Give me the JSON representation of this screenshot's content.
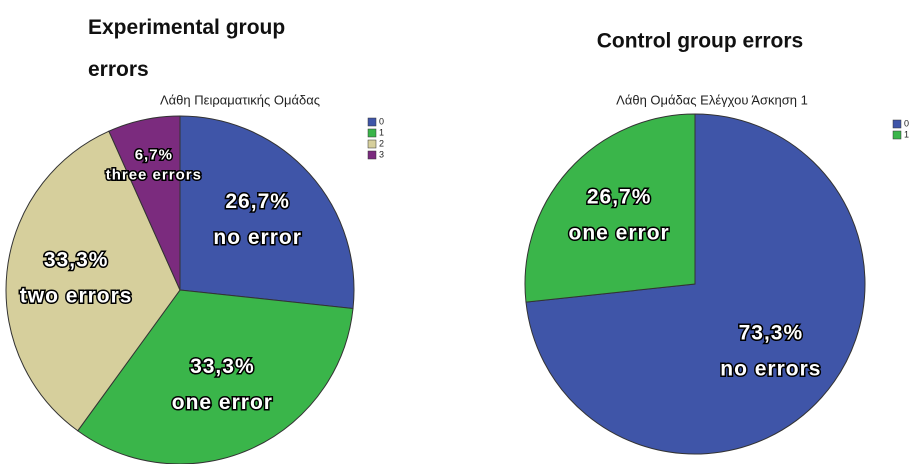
{
  "chart_data": [
    {
      "type": "pie",
      "title": "Experimental group errors",
      "subtitle": "Λάθη Πειραματικής Ομάδας",
      "categories": [
        "0",
        "1",
        "2",
        "3"
      ],
      "values": [
        26.7,
        33.3,
        33.3,
        6.7
      ],
      "value_labels": [
        "26,7%",
        "33,3%",
        "33,3%",
        "6,7%"
      ],
      "slice_labels": [
        "no error",
        "one error",
        "two errors",
        "three errors"
      ],
      "colors": [
        "#3f55a8",
        "#3ab54a",
        "#d6cf9c",
        "#7b2b7e"
      ]
    },
    {
      "type": "pie",
      "title": "Control group errors",
      "subtitle": "Λάθη Ομάδας Ελέγχου Άσκηση 1",
      "categories": [
        "0",
        "1"
      ],
      "values": [
        73.3,
        26.7
      ],
      "value_labels": [
        "73,3%",
        "26,7%"
      ],
      "slice_labels": [
        "no errors",
        "one error"
      ],
      "colors": [
        "#3f55a8",
        "#3ab54a"
      ]
    }
  ]
}
